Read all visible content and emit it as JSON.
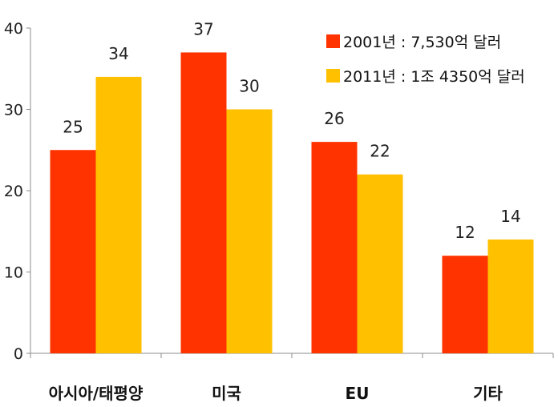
{
  "chart_data": {
    "type": "bar",
    "categories": [
      "아시아/태평양",
      "미국",
      "EU",
      "기타"
    ],
    "series": [
      {
        "name": "2001년 : 7,530억 달러",
        "values": [
          25,
          37,
          26,
          12
        ],
        "color": "#FF3300"
      },
      {
        "name": "2011년 : 1조 4350억 달러",
        "values": [
          34,
          30,
          22,
          14
        ],
        "color": "#FFC000"
      }
    ],
    "ylim": [
      0,
      40
    ],
    "yticks": [
      "0",
      "10",
      "20",
      "30",
      "40"
    ],
    "grid": false,
    "legend": "top-right",
    "title": "",
    "xlabel": "",
    "ylabel": ""
  }
}
